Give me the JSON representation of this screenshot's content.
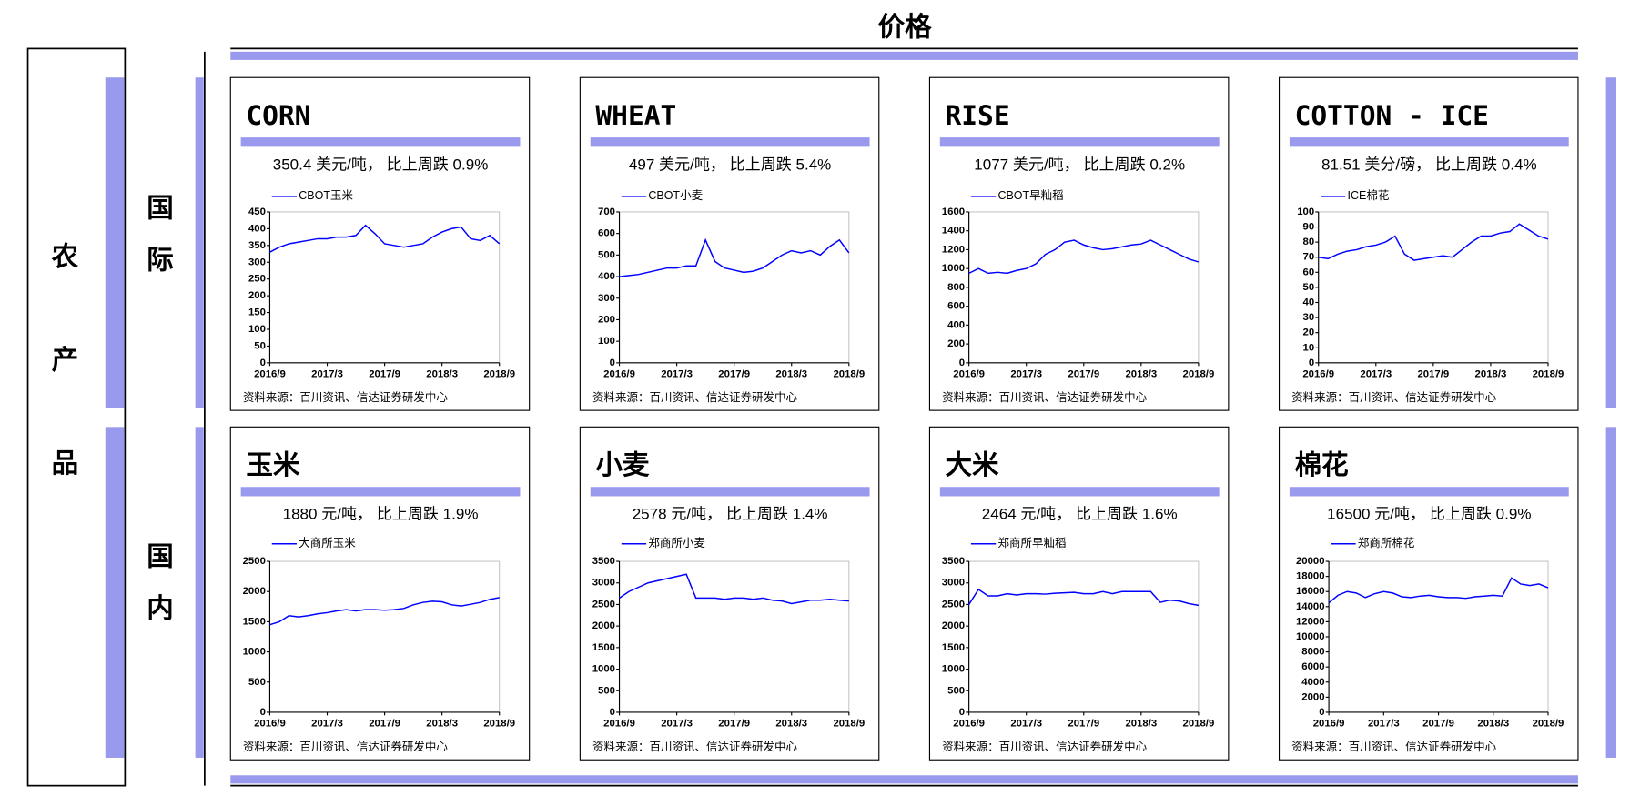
{
  "header": {
    "title": "价格"
  },
  "side_label": [
    "农",
    "产",
    "品"
  ],
  "row_labels": [
    [
      "国",
      "际"
    ],
    [
      "国",
      "内"
    ]
  ],
  "chart_data": [
    {
      "type": "line",
      "title": "CORN",
      "subtitle": "350.4 美元/吨，  比上周跌 0.9%",
      "note": "资料来源：百川资讯、信达证券研发中心",
      "x": [
        "2016/9",
        "2016/10",
        "2016/11",
        "2016/12",
        "2017/1",
        "2017/2",
        "2017/3",
        "2017/4",
        "2017/5",
        "2017/6",
        "2017/7",
        "2017/8",
        "2017/9",
        "2017/10",
        "2017/11",
        "2017/12",
        "2018/1",
        "2018/2",
        "2018/3",
        "2018/4",
        "2018/5",
        "2018/6",
        "2018/7",
        "2018/8",
        "2018/9"
      ],
      "xticks": [
        "2016/9",
        "2017/3",
        "2017/9",
        "2018/3",
        "2018/9"
      ],
      "ylim": [
        0,
        450
      ],
      "yticks": [
        0,
        50,
        100,
        150,
        200,
        250,
        300,
        350,
        400,
        450
      ],
      "series": [
        {
          "name": "CBOT玉米",
          "color": "#0000ff",
          "values": [
            330,
            345,
            355,
            360,
            365,
            370,
            370,
            375,
            375,
            380,
            410,
            385,
            355,
            350,
            345,
            350,
            355,
            375,
            390,
            400,
            405,
            370,
            365,
            380,
            355
          ]
        }
      ]
    },
    {
      "type": "line",
      "title": "WHEAT",
      "subtitle": "497 美元/吨，  比上周跌 5.4%",
      "note": "资料来源：百川资讯、信达证券研发中心",
      "x": [
        "2016/9",
        "2016/10",
        "2016/11",
        "2016/12",
        "2017/1",
        "2017/2",
        "2017/3",
        "2017/4",
        "2017/5",
        "2017/6",
        "2017/7",
        "2017/8",
        "2017/9",
        "2017/10",
        "2017/11",
        "2017/12",
        "2018/1",
        "2018/2",
        "2018/3",
        "2018/4",
        "2018/5",
        "2018/6",
        "2018/7",
        "2018/8",
        "2018/9"
      ],
      "xticks": [
        "2016/9",
        "2017/3",
        "2017/9",
        "2018/3",
        "2018/9"
      ],
      "ylim": [
        0,
        700
      ],
      "yticks": [
        0,
        100,
        200,
        300,
        400,
        500,
        600,
        700
      ],
      "series": [
        {
          "name": "CBOT小麦",
          "color": "#0000ff",
          "values": [
            400,
            405,
            410,
            420,
            430,
            440,
            440,
            450,
            450,
            570,
            470,
            440,
            430,
            420,
            425,
            440,
            470,
            500,
            520,
            510,
            520,
            500,
            540,
            570,
            510
          ]
        }
      ]
    },
    {
      "type": "line",
      "title": "RISE",
      "subtitle": "1077 美元/吨，  比上周跌 0.2%",
      "note": "资料来源：百川资讯、信达证券研发中心",
      "x": [
        "2016/9",
        "2016/10",
        "2016/11",
        "2016/12",
        "2017/1",
        "2017/2",
        "2017/3",
        "2017/4",
        "2017/5",
        "2017/6",
        "2017/7",
        "2017/8",
        "2017/9",
        "2017/10",
        "2017/11",
        "2017/12",
        "2018/1",
        "2018/2",
        "2018/3",
        "2018/4",
        "2018/5",
        "2018/6",
        "2018/7",
        "2018/8",
        "2018/9"
      ],
      "xticks": [
        "2016/9",
        "2017/3",
        "2017/9",
        "2018/3",
        "2018/9"
      ],
      "ylim": [
        0,
        1600
      ],
      "yticks": [
        0,
        200,
        400,
        600,
        800,
        1000,
        1200,
        1400,
        1600
      ],
      "series": [
        {
          "name": "CBOT早籼稻",
          "color": "#0000ff",
          "values": [
            950,
            1000,
            950,
            960,
            950,
            980,
            1000,
            1050,
            1150,
            1200,
            1280,
            1300,
            1250,
            1220,
            1200,
            1210,
            1230,
            1250,
            1260,
            1300,
            1250,
            1200,
            1150,
            1100,
            1070
          ]
        }
      ]
    },
    {
      "type": "line",
      "title": "COTTON - ICE",
      "subtitle": "81.51 美分/磅，  比上周跌 0.4%",
      "note": "资料来源：百川资讯、信达证券研发中心",
      "x": [
        "2016/9",
        "2016/10",
        "2016/11",
        "2016/12",
        "2017/1",
        "2017/2",
        "2017/3",
        "2017/4",
        "2017/5",
        "2017/6",
        "2017/7",
        "2017/8",
        "2017/9",
        "2017/10",
        "2017/11",
        "2017/12",
        "2018/1",
        "2018/2",
        "2018/3",
        "2018/4",
        "2018/5",
        "2018/6",
        "2018/7",
        "2018/8",
        "2018/9"
      ],
      "xticks": [
        "2016/9",
        "2017/3",
        "2017/9",
        "2018/3",
        "2018/9"
      ],
      "ylim": [
        0,
        100
      ],
      "yticks": [
        0,
        10,
        20,
        30,
        40,
        50,
        60,
        70,
        80,
        90,
        100
      ],
      "series": [
        {
          "name": "ICE棉花",
          "color": "#0000ff",
          "values": [
            70,
            69,
            72,
            74,
            75,
            77,
            78,
            80,
            84,
            72,
            68,
            69,
            70,
            71,
            70,
            75,
            80,
            84,
            84,
            86,
            87,
            92,
            88,
            84,
            82
          ]
        }
      ]
    },
    {
      "type": "line",
      "title": "玉米",
      "subtitle": "1880 元/吨，     比上周跌 1.9%",
      "note": "资料来源：百川资讯、信达证券研发中心",
      "x": [
        "2016/9",
        "2016/10",
        "2016/11",
        "2016/12",
        "2017/1",
        "2017/2",
        "2017/3",
        "2017/4",
        "2017/5",
        "2017/6",
        "2017/7",
        "2017/8",
        "2017/9",
        "2017/10",
        "2017/11",
        "2017/12",
        "2018/1",
        "2018/2",
        "2018/3",
        "2018/4",
        "2018/5",
        "2018/6",
        "2018/7",
        "2018/8",
        "2018/9"
      ],
      "xticks": [
        "2016/9",
        "2017/3",
        "2017/9",
        "2018/3",
        "2018/9"
      ],
      "ylim": [
        0,
        2500
      ],
      "yticks": [
        0,
        500,
        1000,
        1500,
        2000,
        2500
      ],
      "series": [
        {
          "name": "大商所玉米",
          "color": "#0000ff",
          "values": [
            1450,
            1500,
            1600,
            1580,
            1600,
            1630,
            1650,
            1680,
            1700,
            1680,
            1700,
            1700,
            1690,
            1700,
            1720,
            1780,
            1820,
            1840,
            1830,
            1780,
            1760,
            1790,
            1820,
            1870,
            1900
          ]
        }
      ]
    },
    {
      "type": "line",
      "title": "小麦",
      "subtitle": "2578 元/吨，     比上周跌 1.4%",
      "note": "资料来源：百川资讯、信达证券研发中心",
      "x": [
        "2016/9",
        "2016/10",
        "2016/11",
        "2016/12",
        "2017/1",
        "2017/2",
        "2017/3",
        "2017/4",
        "2017/5",
        "2017/6",
        "2017/7",
        "2017/8",
        "2017/9",
        "2017/10",
        "2017/11",
        "2017/12",
        "2018/1",
        "2018/2",
        "2018/3",
        "2018/4",
        "2018/5",
        "2018/6",
        "2018/7",
        "2018/8",
        "2018/9"
      ],
      "xticks": [
        "2016/9",
        "2017/3",
        "2017/9",
        "2018/3",
        "2018/9"
      ],
      "ylim": [
        0,
        3500
      ],
      "yticks": [
        0,
        500,
        1000,
        1500,
        2000,
        2500,
        3000,
        3500
      ],
      "series": [
        {
          "name": "郑商所小麦",
          "color": "#0000ff",
          "values": [
            2650,
            2800,
            2900,
            3000,
            3050,
            3100,
            3150,
            3200,
            2650,
            2650,
            2650,
            2620,
            2650,
            2650,
            2620,
            2650,
            2600,
            2580,
            2520,
            2560,
            2600,
            2600,
            2620,
            2600,
            2580
          ]
        }
      ]
    },
    {
      "type": "line",
      "title": "大米",
      "subtitle": "2464 元/吨，     比上周跌 1.6%",
      "note": "资料来源：百川资讯、信达证券研发中心",
      "x": [
        "2016/9",
        "2016/10",
        "2016/11",
        "2016/12",
        "2017/1",
        "2017/2",
        "2017/3",
        "2017/4",
        "2017/5",
        "2017/6",
        "2017/7",
        "2017/8",
        "2017/9",
        "2017/10",
        "2017/11",
        "2017/12",
        "2018/1",
        "2018/2",
        "2018/3",
        "2018/4",
        "2018/5",
        "2018/6",
        "2018/7",
        "2018/8",
        "2018/9"
      ],
      "xticks": [
        "2016/9",
        "2017/3",
        "2017/9",
        "2018/3",
        "2018/9"
      ],
      "ylim": [
        0,
        3500
      ],
      "yticks": [
        0,
        500,
        1000,
        1500,
        2000,
        2500,
        3000,
        3500
      ],
      "series": [
        {
          "name": "郑商所早籼稻",
          "color": "#0000ff",
          "values": [
            2500,
            2850,
            2700,
            2700,
            2750,
            2720,
            2750,
            2750,
            2740,
            2760,
            2770,
            2780,
            2750,
            2750,
            2800,
            2750,
            2800,
            2800,
            2800,
            2800,
            2550,
            2600,
            2580,
            2520,
            2480
          ]
        }
      ]
    },
    {
      "type": "line",
      "title": "棉花",
      "subtitle": "16500 元/吨，     比上周跌 0.9%",
      "note": "资料来源：百川资讯、信达证券研发中心",
      "x": [
        "2016/9",
        "2016/10",
        "2016/11",
        "2016/12",
        "2017/1",
        "2017/2",
        "2017/3",
        "2017/4",
        "2017/5",
        "2017/6",
        "2017/7",
        "2017/8",
        "2017/9",
        "2017/10",
        "2017/11",
        "2017/12",
        "2018/1",
        "2018/2",
        "2018/3",
        "2018/4",
        "2018/5",
        "2018/6",
        "2018/7",
        "2018/8",
        "2018/9"
      ],
      "xticks": [
        "2016/9",
        "2017/3",
        "2017/9",
        "2018/3",
        "2018/9"
      ],
      "ylim": [
        0,
        20000
      ],
      "yticks": [
        0,
        2000,
        4000,
        6000,
        8000,
        10000,
        12000,
        14000,
        16000,
        18000,
        20000
      ],
      "series": [
        {
          "name": "郑商所棉花",
          "color": "#0000ff",
          "values": [
            14500,
            15500,
            16000,
            15800,
            15200,
            15700,
            16000,
            15800,
            15300,
            15200,
            15400,
            15500,
            15300,
            15200,
            15200,
            15100,
            15300,
            15400,
            15500,
            15400,
            17800,
            17000,
            16800,
            17000,
            16500
          ]
        }
      ]
    }
  ]
}
